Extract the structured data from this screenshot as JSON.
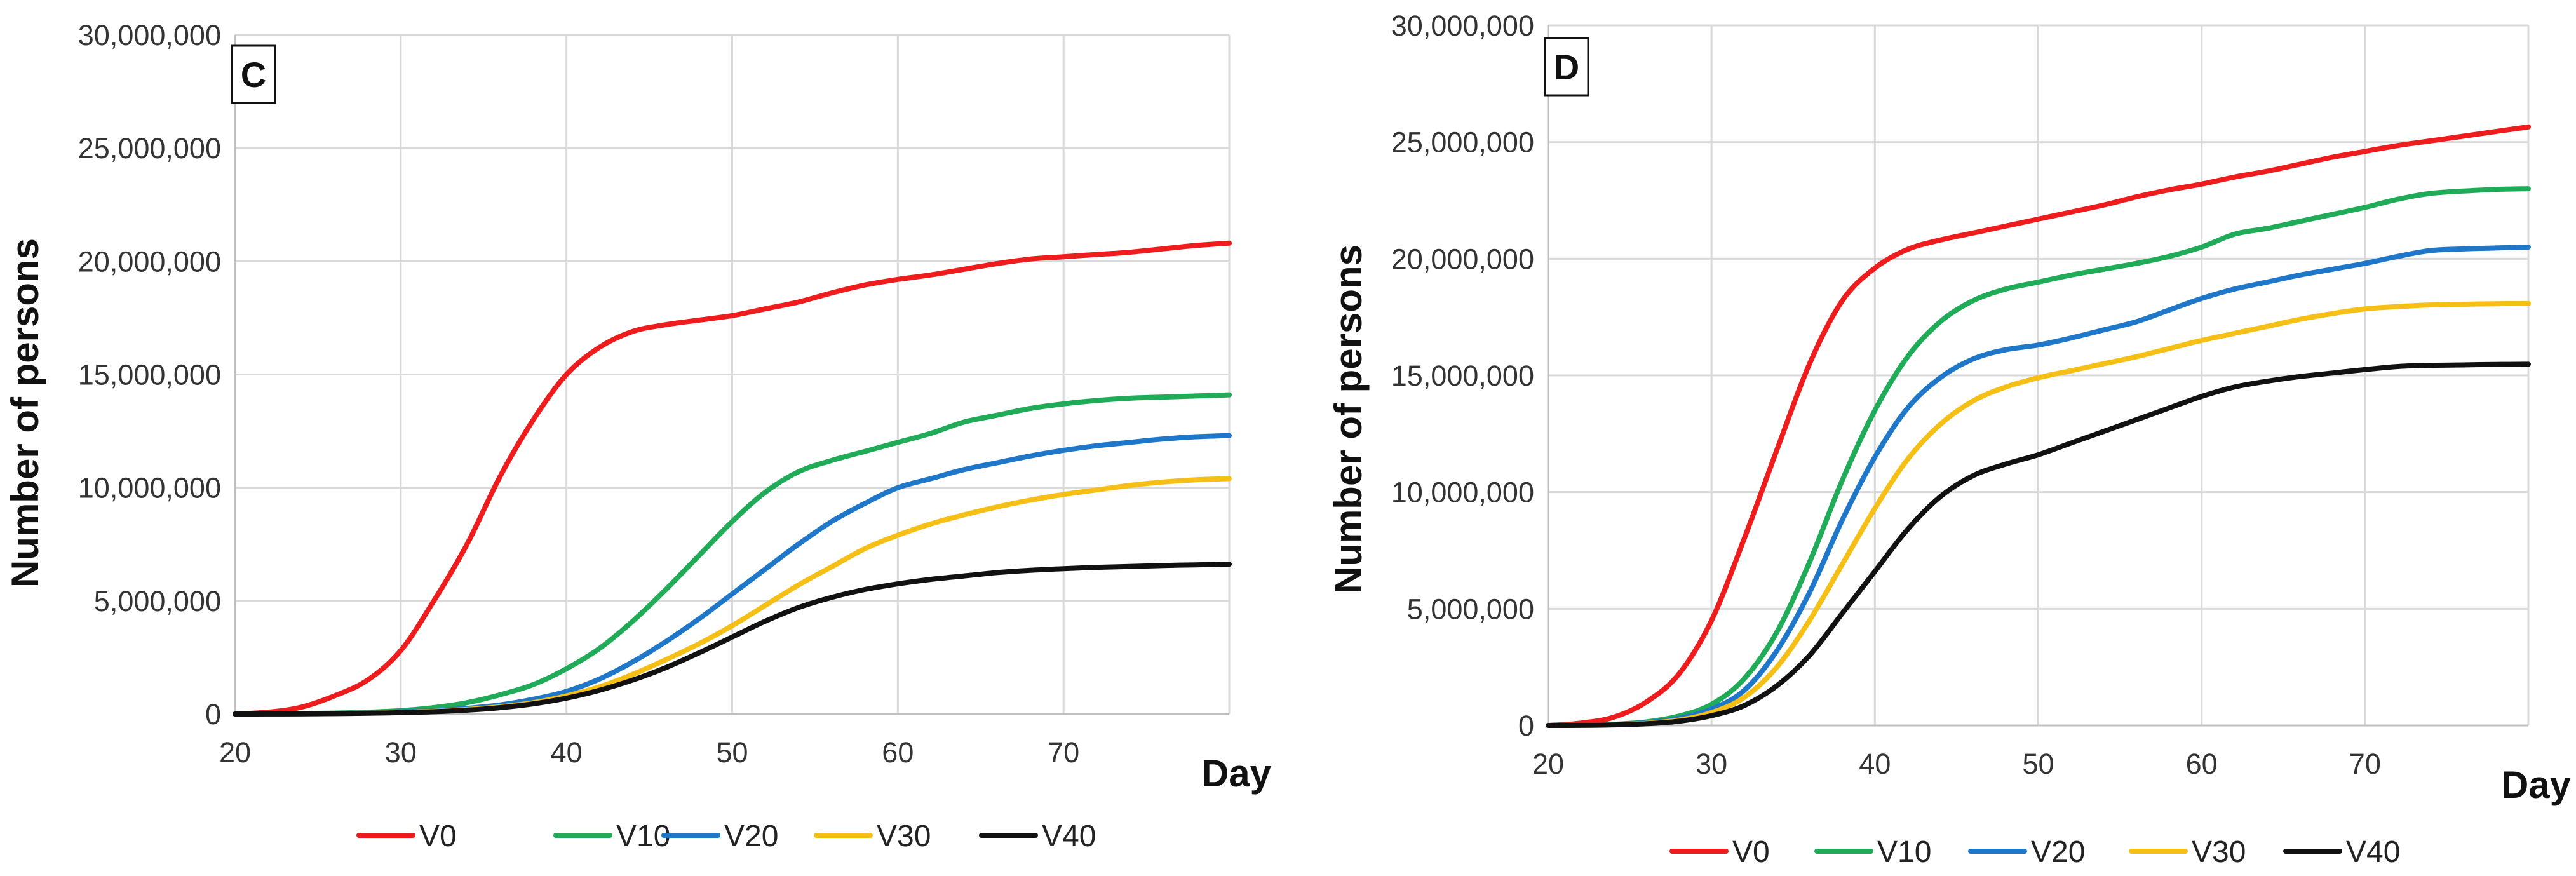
{
  "chart_data": [
    {
      "type": "line",
      "panel_label": "C",
      "ylabel": "Number of persons",
      "xlabel": "Day",
      "xlim": [
        20,
        80
      ],
      "ylim": [
        0,
        30000000
      ],
      "x_ticks": [
        20,
        30,
        40,
        50,
        60,
        70
      ],
      "x_tick_labels": [
        "20",
        "30",
        "40",
        "50",
        "60",
        "70"
      ],
      "y_ticks": [
        0,
        5000000,
        10000000,
        15000000,
        20000000,
        25000000,
        30000000
      ],
      "y_tick_labels": [
        "0",
        "5,000,000",
        "10,000,000",
        "15,000,000",
        "20,000,000",
        "25,000,000",
        "30,000,000"
      ],
      "grid": true,
      "legend_position": "bottom",
      "x": [
        20,
        22,
        24,
        26,
        28,
        30,
        32,
        34,
        36,
        38,
        40,
        42,
        44,
        46,
        48,
        50,
        52,
        54,
        56,
        58,
        60,
        62,
        64,
        66,
        68,
        70,
        72,
        74,
        76,
        78,
        80
      ],
      "series": [
        {
          "name": "V0",
          "color": "#ee1c1c",
          "values": [
            0,
            80000,
            300000,
            800000,
            1500000,
            2800000,
            5000000,
            7500000,
            10500000,
            13000000,
            15000000,
            16200000,
            16900000,
            17200000,
            17400000,
            17600000,
            17900000,
            18200000,
            18600000,
            18950000,
            19200000,
            19400000,
            19650000,
            19900000,
            20100000,
            20200000,
            20300000,
            20400000,
            20550000,
            20700000,
            20800000
          ]
        },
        {
          "name": "V10",
          "color": "#1fab57",
          "values": [
            0,
            5000,
            15000,
            40000,
            80000,
            150000,
            280000,
            500000,
            850000,
            1300000,
            2000000,
            2900000,
            4100000,
            5500000,
            7000000,
            8500000,
            9800000,
            10700000,
            11200000,
            11600000,
            12000000,
            12400000,
            12900000,
            13200000,
            13500000,
            13700000,
            13850000,
            13950000,
            14000000,
            14050000,
            14100000
          ]
        },
        {
          "name": "V20",
          "color": "#1f77c9",
          "values": [
            0,
            3000,
            10000,
            25000,
            50000,
            90000,
            150000,
            250000,
            400000,
            650000,
            1000000,
            1550000,
            2300000,
            3200000,
            4200000,
            5300000,
            6400000,
            7500000,
            8500000,
            9300000,
            10000000,
            10400000,
            10800000,
            11100000,
            11400000,
            11650000,
            11850000,
            12000000,
            12150000,
            12250000,
            12300000
          ]
        },
        {
          "name": "V30",
          "color": "#f5bf16",
          "values": [
            0,
            2000,
            8000,
            20000,
            40000,
            70000,
            120000,
            200000,
            320000,
            500000,
            800000,
            1200000,
            1750000,
            2400000,
            3100000,
            3900000,
            4800000,
            5700000,
            6500000,
            7300000,
            7900000,
            8400000,
            8800000,
            9150000,
            9450000,
            9700000,
            9900000,
            10100000,
            10250000,
            10350000,
            10400000
          ]
        },
        {
          "name": "V40",
          "color": "#111111",
          "values": [
            0,
            2000,
            7000,
            18000,
            35000,
            60000,
            100000,
            170000,
            280000,
            450000,
            700000,
            1050000,
            1500000,
            2050000,
            2700000,
            3400000,
            4100000,
            4700000,
            5150000,
            5500000,
            5750000,
            5950000,
            6100000,
            6250000,
            6350000,
            6420000,
            6480000,
            6520000,
            6560000,
            6590000,
            6620000
          ]
        }
      ]
    },
    {
      "type": "line",
      "panel_label": "D",
      "ylabel": "Number of persons",
      "xlabel": "Day",
      "xlim": [
        20,
        80
      ],
      "ylim": [
        0,
        30000000
      ],
      "x_ticks": [
        20,
        30,
        40,
        50,
        60,
        70
      ],
      "x_tick_labels": [
        "20",
        "30",
        "40",
        "50",
        "60",
        "70"
      ],
      "y_ticks": [
        0,
        5000000,
        10000000,
        15000000,
        20000000,
        25000000,
        30000000
      ],
      "y_tick_labels": [
        "0",
        "5,000,000",
        "10,000,000",
        "15,000,000",
        "20,000,000",
        "25,000,000",
        "30,000,000"
      ],
      "grid": true,
      "legend_position": "bottom",
      "x": [
        20,
        22,
        24,
        26,
        28,
        30,
        32,
        34,
        36,
        38,
        40,
        42,
        44,
        46,
        48,
        50,
        52,
        54,
        56,
        58,
        60,
        62,
        64,
        66,
        68,
        70,
        72,
        74,
        76,
        78,
        80
      ],
      "series": [
        {
          "name": "V0",
          "color": "#ee1c1c",
          "values": [
            0,
            100000,
            350000,
            1000000,
            2200000,
            4500000,
            8000000,
            11800000,
            15500000,
            18200000,
            19600000,
            20400000,
            20800000,
            21100000,
            21400000,
            21700000,
            22000000,
            22300000,
            22650000,
            22950000,
            23200000,
            23500000,
            23750000,
            24050000,
            24350000,
            24600000,
            24850000,
            25050000,
            25250000,
            25450000,
            25650000
          ]
        },
        {
          "name": "V10",
          "color": "#1fab57",
          "values": [
            0,
            10000,
            50000,
            150000,
            400000,
            900000,
            2000000,
            4000000,
            7000000,
            10500000,
            13500000,
            15800000,
            17300000,
            18200000,
            18700000,
            19000000,
            19300000,
            19550000,
            19800000,
            20100000,
            20500000,
            21050000,
            21300000,
            21600000,
            21900000,
            22200000,
            22550000,
            22800000,
            22900000,
            22970000,
            23000000
          ]
        },
        {
          "name": "V20",
          "color": "#1f77c9",
          "values": [
            0,
            8000,
            40000,
            120000,
            300000,
            700000,
            1500000,
            3200000,
            5700000,
            8800000,
            11500000,
            13600000,
            14900000,
            15700000,
            16100000,
            16300000,
            16600000,
            16950000,
            17300000,
            17800000,
            18300000,
            18700000,
            19000000,
            19300000,
            19550000,
            19800000,
            20100000,
            20350000,
            20420000,
            20460000,
            20500000
          ]
        },
        {
          "name": "V30",
          "color": "#f5bf16",
          "values": [
            0,
            6000,
            30000,
            90000,
            230000,
            550000,
            1200000,
            2500000,
            4500000,
            6900000,
            9300000,
            11400000,
            12900000,
            13900000,
            14500000,
            14900000,
            15200000,
            15500000,
            15800000,
            16150000,
            16500000,
            16800000,
            17100000,
            17400000,
            17650000,
            17850000,
            17950000,
            18020000,
            18050000,
            18070000,
            18080000
          ]
        },
        {
          "name": "V40",
          "color": "#111111",
          "values": [
            0,
            5000,
            25000,
            70000,
            180000,
            420000,
            850000,
            1700000,
            3000000,
            4800000,
            6600000,
            8400000,
            9800000,
            10700000,
            11200000,
            11600000,
            12100000,
            12600000,
            13100000,
            13600000,
            14100000,
            14500000,
            14750000,
            14950000,
            15100000,
            15250000,
            15380000,
            15430000,
            15450000,
            15470000,
            15480000
          ]
        }
      ]
    }
  ]
}
